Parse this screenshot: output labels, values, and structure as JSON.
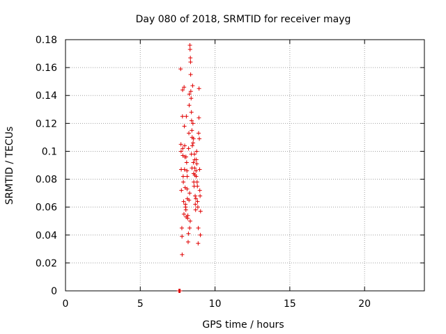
{
  "chart_data": {
    "type": "scatter",
    "title": "Day 080 of 2018, SRMTID for receiver mayg",
    "xlabel": "GPS time / hours",
    "ylabel": "SRMTID / TECUs",
    "xlim": [
      0,
      24
    ],
    "ylim": [
      0,
      0.18
    ],
    "x_ticks": [
      0,
      5,
      10,
      15,
      20
    ],
    "y_ticks": [
      0,
      0.02,
      0.04,
      0.06,
      0.08,
      0.1,
      0.12,
      0.14,
      0.16,
      0.18
    ],
    "x_tick_labels": [
      "0",
      "5",
      "10",
      "15",
      "20"
    ],
    "y_tick_labels": [
      "0",
      "0.02",
      "0.04",
      "0.06",
      "0.08",
      "0.1",
      "0.12",
      "0.14",
      "0.16",
      "0.18"
    ],
    "grid": true,
    "marker": "+",
    "color": "#e00000",
    "series": [
      {
        "points": [
          [
            7.58,
            0.0
          ],
          [
            7.62,
            0.0
          ],
          [
            7.67,
            0.0
          ],
          [
            7.7,
            0.159
          ],
          [
            7.72,
            0.105
          ],
          [
            7.73,
            0.1
          ],
          [
            7.74,
            0.087
          ],
          [
            7.75,
            0.072
          ],
          [
            7.78,
            0.045
          ],
          [
            7.79,
            0.039
          ],
          [
            7.8,
            0.026
          ],
          [
            7.82,
            0.125
          ],
          [
            7.83,
            0.144
          ],
          [
            7.85,
            0.097
          ],
          [
            7.87,
            0.082
          ],
          [
            7.88,
            0.078
          ],
          [
            7.9,
            0.064
          ],
          [
            7.92,
            0.055
          ],
          [
            7.93,
            0.146
          ],
          [
            7.95,
            0.118
          ],
          [
            7.97,
            0.104
          ],
          [
            7.98,
            0.096
          ],
          [
            8.0,
            0.074
          ],
          [
            8.02,
            0.062
          ],
          [
            8.03,
            0.06
          ],
          [
            8.05,
            0.058
          ],
          [
            8.07,
            0.053
          ],
          [
            8.08,
            0.125
          ],
          [
            8.1,
            0.092
          ],
          [
            8.12,
            0.086
          ],
          [
            8.13,
            0.073
          ],
          [
            8.15,
            0.066
          ],
          [
            8.17,
            0.052
          ],
          [
            8.18,
            0.054
          ],
          [
            8.2,
            0.035
          ],
          [
            8.22,
            0.041
          ],
          [
            8.23,
            0.102
          ],
          [
            8.25,
            0.113
          ],
          [
            8.27,
            0.133
          ],
          [
            8.28,
            0.141
          ],
          [
            8.3,
            0.045
          ],
          [
            8.32,
            0.176
          ],
          [
            8.33,
            0.173
          ],
          [
            8.35,
            0.167
          ],
          [
            8.36,
            0.164
          ],
          [
            8.37,
            0.155
          ],
          [
            8.38,
            0.143
          ],
          [
            8.4,
            0.138
          ],
          [
            8.42,
            0.128
          ],
          [
            8.43,
            0.122
          ],
          [
            8.45,
            0.115
          ],
          [
            8.47,
            0.11
          ],
          [
            8.48,
            0.104
          ],
          [
            8.5,
            0.147
          ],
          [
            8.52,
            0.12
          ],
          [
            8.53,
            0.106
          ],
          [
            8.55,
            0.092
          ],
          [
            8.57,
            0.084
          ],
          [
            8.58,
            0.078
          ],
          [
            8.6,
            0.075
          ],
          [
            8.62,
            0.098
          ],
          [
            8.63,
            0.088
          ],
          [
            8.65,
            0.083
          ],
          [
            8.67,
            0.068
          ],
          [
            8.68,
            0.062
          ],
          [
            8.7,
            0.058
          ],
          [
            8.72,
            0.066
          ],
          [
            8.73,
            0.086
          ],
          [
            8.75,
            0.094
          ],
          [
            8.77,
            0.1
          ],
          [
            8.78,
            0.091
          ],
          [
            8.8,
            0.078
          ],
          [
            8.82,
            0.075
          ],
          [
            8.83,
            0.064
          ],
          [
            8.85,
            0.06
          ],
          [
            8.87,
            0.034
          ],
          [
            8.88,
            0.045
          ],
          [
            8.9,
            0.113
          ],
          [
            8.92,
            0.124
          ],
          [
            8.93,
            0.145
          ],
          [
            8.95,
            0.109
          ],
          [
            8.97,
            0.087
          ],
          [
            8.98,
            0.072
          ],
          [
            9.0,
            0.068
          ],
          [
            9.02,
            0.04
          ],
          [
            9.03,
            0.057
          ],
          [
            8.3,
            0.07
          ],
          [
            8.26,
            0.065
          ],
          [
            8.42,
            0.098
          ],
          [
            8.46,
            0.088
          ],
          [
            8.14,
            0.082
          ],
          [
            8.06,
            0.096
          ],
          [
            7.96,
            0.087
          ],
          [
            7.84,
            0.102
          ],
          [
            8.56,
            0.109
          ],
          [
            8.64,
            0.094
          ],
          [
            8.74,
            0.082
          ],
          [
            8.34,
            0.05
          ]
        ]
      }
    ]
  }
}
